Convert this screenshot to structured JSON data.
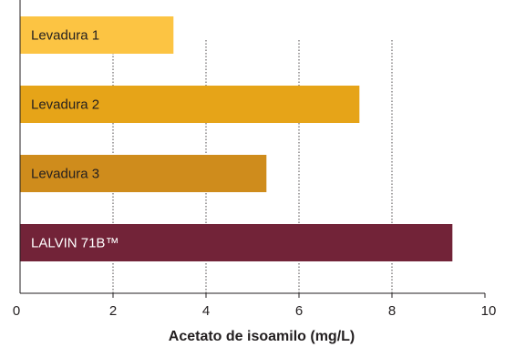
{
  "chart_data": {
    "type": "bar",
    "orientation": "horizontal",
    "categories": [
      "Levadura 1",
      "Levadura 2",
      "Levadura 3",
      "LALVIN 71B™"
    ],
    "values": [
      3.3,
      7.3,
      5.3,
      9.3
    ],
    "xlabel": "Acetato de isoamilo (mg/L)",
    "ylabel": "",
    "xlim": [
      0,
      10
    ],
    "xticks": [
      "0",
      "2",
      "4",
      "6",
      "8",
      "10"
    ],
    "grid": "vertical dotted",
    "legend": "none"
  },
  "colors": {
    "bars": [
      "#fcc443",
      "#e6a418",
      "#cf8c1c",
      "#722338"
    ],
    "bar_text": [
      "#231f20",
      "#231f20",
      "#231f20",
      "#ffffff"
    ],
    "axis": "#231f20",
    "grid": "#231f20"
  }
}
